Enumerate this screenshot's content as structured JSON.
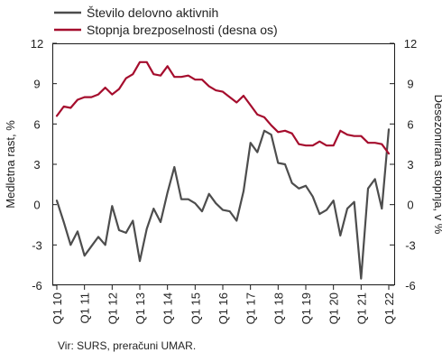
{
  "chart_data": {
    "type": "line",
    "legend_position": "top-left",
    "grid": false,
    "x_labels": [
      "Q1 10",
      "Q1 11",
      "Q1 12",
      "Q1 13",
      "Q1 14",
      "Q1 15",
      "Q1 16",
      "Q1 17",
      "Q1 18",
      "Q1 19",
      "Q1 20",
      "Q1 21",
      "Q1 22"
    ],
    "ylabel_left": "Medletna rast, %",
    "ylabel_right": "Desezonirana stopnja, v %",
    "ylim_left": [
      -6,
      12
    ],
    "ylim_right": [
      -6,
      12
    ],
    "yticks": [
      -6,
      -3,
      0,
      3,
      6,
      9,
      12
    ],
    "series": [
      {
        "name": "Število delovno aktivnih",
        "axis": "left",
        "color": "#4d4d4d",
        "values": [
          0.3,
          -1.3,
          -3.0,
          -2.0,
          -3.8,
          -3.1,
          -2.4,
          -3.0,
          -0.1,
          -1.9,
          -2.1,
          -1.2,
          -4.2,
          -1.8,
          -0.3,
          -1.3,
          0.9,
          2.8,
          0.4,
          0.4,
          0.1,
          -0.5,
          0.8,
          0.1,
          -0.4,
          -0.5,
          -1.2,
          1.0,
          4.6,
          3.9,
          5.5,
          5.2,
          3.1,
          3.0,
          1.6,
          1.2,
          1.4,
          0.6,
          -0.7,
          -0.4,
          0.3,
          -2.3,
          -0.3,
          0.2,
          -5.5,
          1.2,
          1.9,
          -0.3,
          5.6
        ]
      },
      {
        "name": "Stopnja brezposelnosti (desna os)",
        "axis": "right",
        "color": "#a50d2d",
        "values": [
          6.6,
          7.3,
          7.2,
          7.8,
          8.0,
          8.0,
          8.2,
          8.7,
          8.2,
          8.6,
          9.4,
          9.7,
          10.6,
          10.6,
          9.7,
          9.6,
          10.3,
          9.5,
          9.5,
          9.6,
          9.3,
          9.3,
          8.8,
          8.5,
          8.4,
          8.0,
          7.6,
          8.1,
          7.4,
          6.7,
          6.5,
          5.9,
          5.4,
          5.5,
          5.3,
          4.5,
          4.4,
          4.4,
          4.7,
          4.4,
          4.4,
          5.5,
          5.2,
          5.1,
          5.1,
          4.6,
          4.6,
          4.5,
          3.8
        ]
      }
    ]
  },
  "source": "Vir: SURS, preračuni UMAR."
}
